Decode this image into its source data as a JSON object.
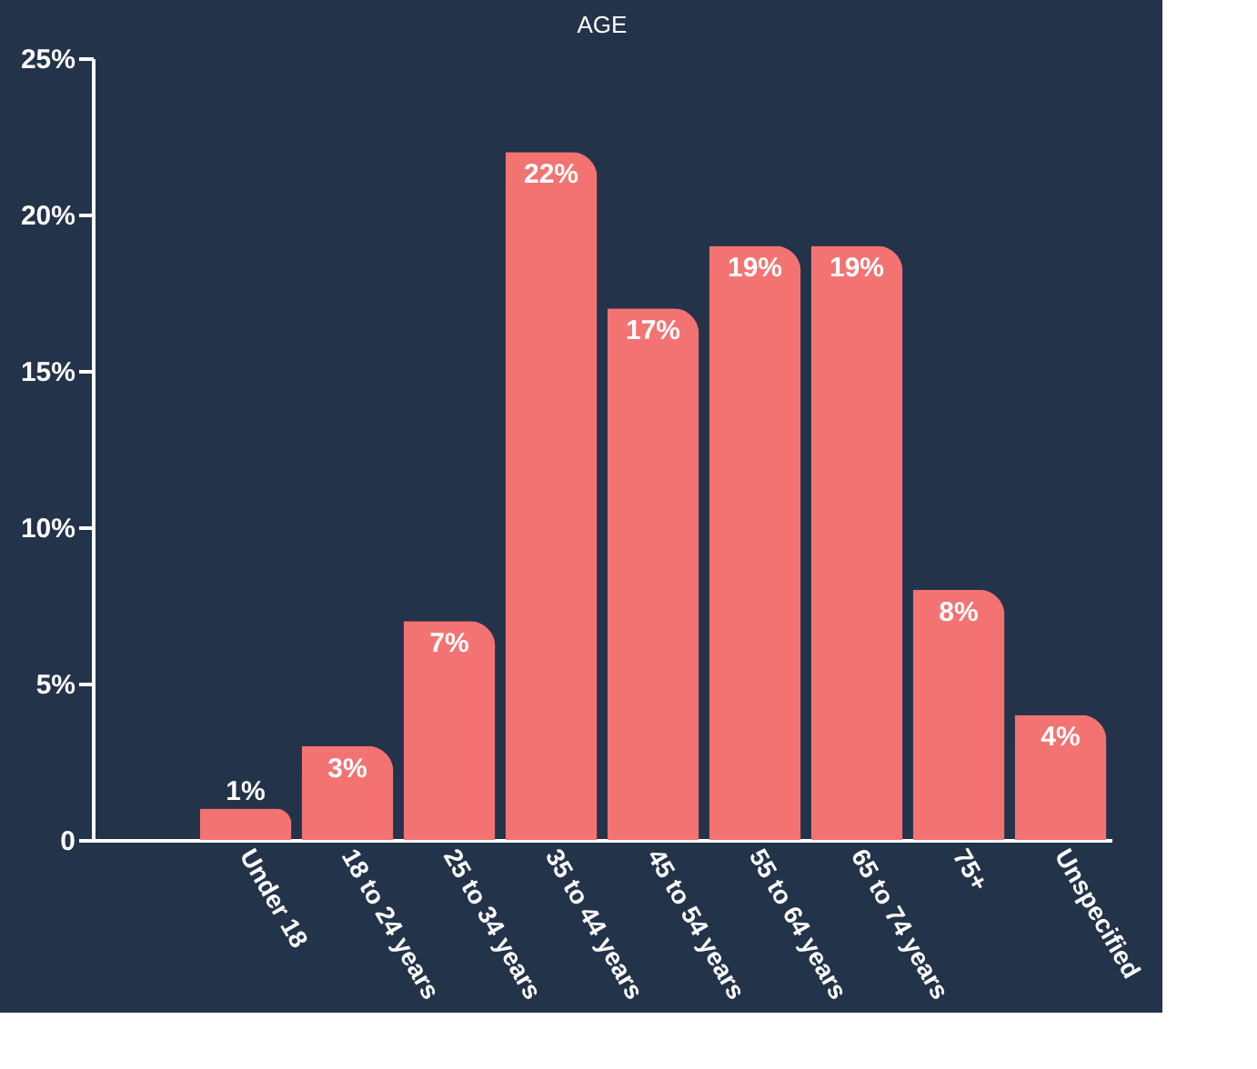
{
  "chart_data": {
    "type": "bar",
    "title": "AGE",
    "categories": [
      null,
      "Under 18",
      "18 to 24 years",
      "25 to 34 years",
      "35 to 44 years",
      "45 to 54 years",
      "55 to 64 years",
      "65 to 74 years",
      "75+",
      "Unspecified"
    ],
    "values": [
      null,
      1,
      3,
      7,
      22,
      17,
      19,
      19,
      8,
      4
    ],
    "color": "#f37373",
    "ylim": [
      0,
      25
    ],
    "yticks": [
      {
        "value": 0,
        "label": "0"
      },
      {
        "value": 5,
        "label": "5%"
      },
      {
        "value": 10,
        "label": "10%"
      },
      {
        "value": 15,
        "label": "15%"
      },
      {
        "value": 20,
        "label": "20%"
      },
      {
        "value": 25,
        "label": "25%"
      }
    ],
    "value_labels": [
      null,
      "1%",
      "3%",
      "7%",
      "22%",
      "17%",
      "19%",
      "19%",
      "8%",
      "4%"
    ],
    "grid": false
  }
}
